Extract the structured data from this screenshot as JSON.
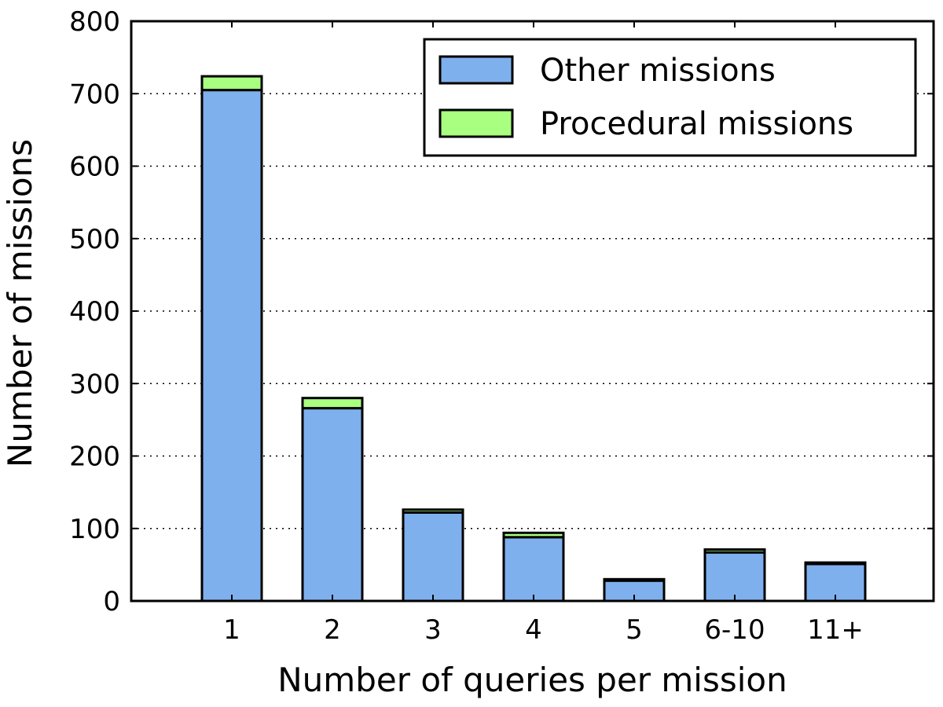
{
  "chart_data": {
    "type": "bar",
    "stacked": true,
    "categories": [
      "1",
      "2",
      "3",
      "4",
      "5",
      "6-10",
      "11+"
    ],
    "series": [
      {
        "name": "Other missions",
        "color": "#7fb0ee",
        "values": [
          705,
          266,
          122,
          88,
          28,
          67,
          51
        ]
      },
      {
        "name": "Procedural missions",
        "color": "#a9ff80",
        "values": [
          19,
          14,
          4,
          6,
          2,
          4,
          2
        ]
      }
    ],
    "xlabel": "Number of queries per mission",
    "ylabel": "Number of missions",
    "ylim": [
      0,
      800
    ],
    "yticks": [
      0,
      100,
      200,
      300,
      400,
      500,
      600,
      700,
      800
    ],
    "grid": "y-dotted",
    "legend_position": "top-right"
  }
}
